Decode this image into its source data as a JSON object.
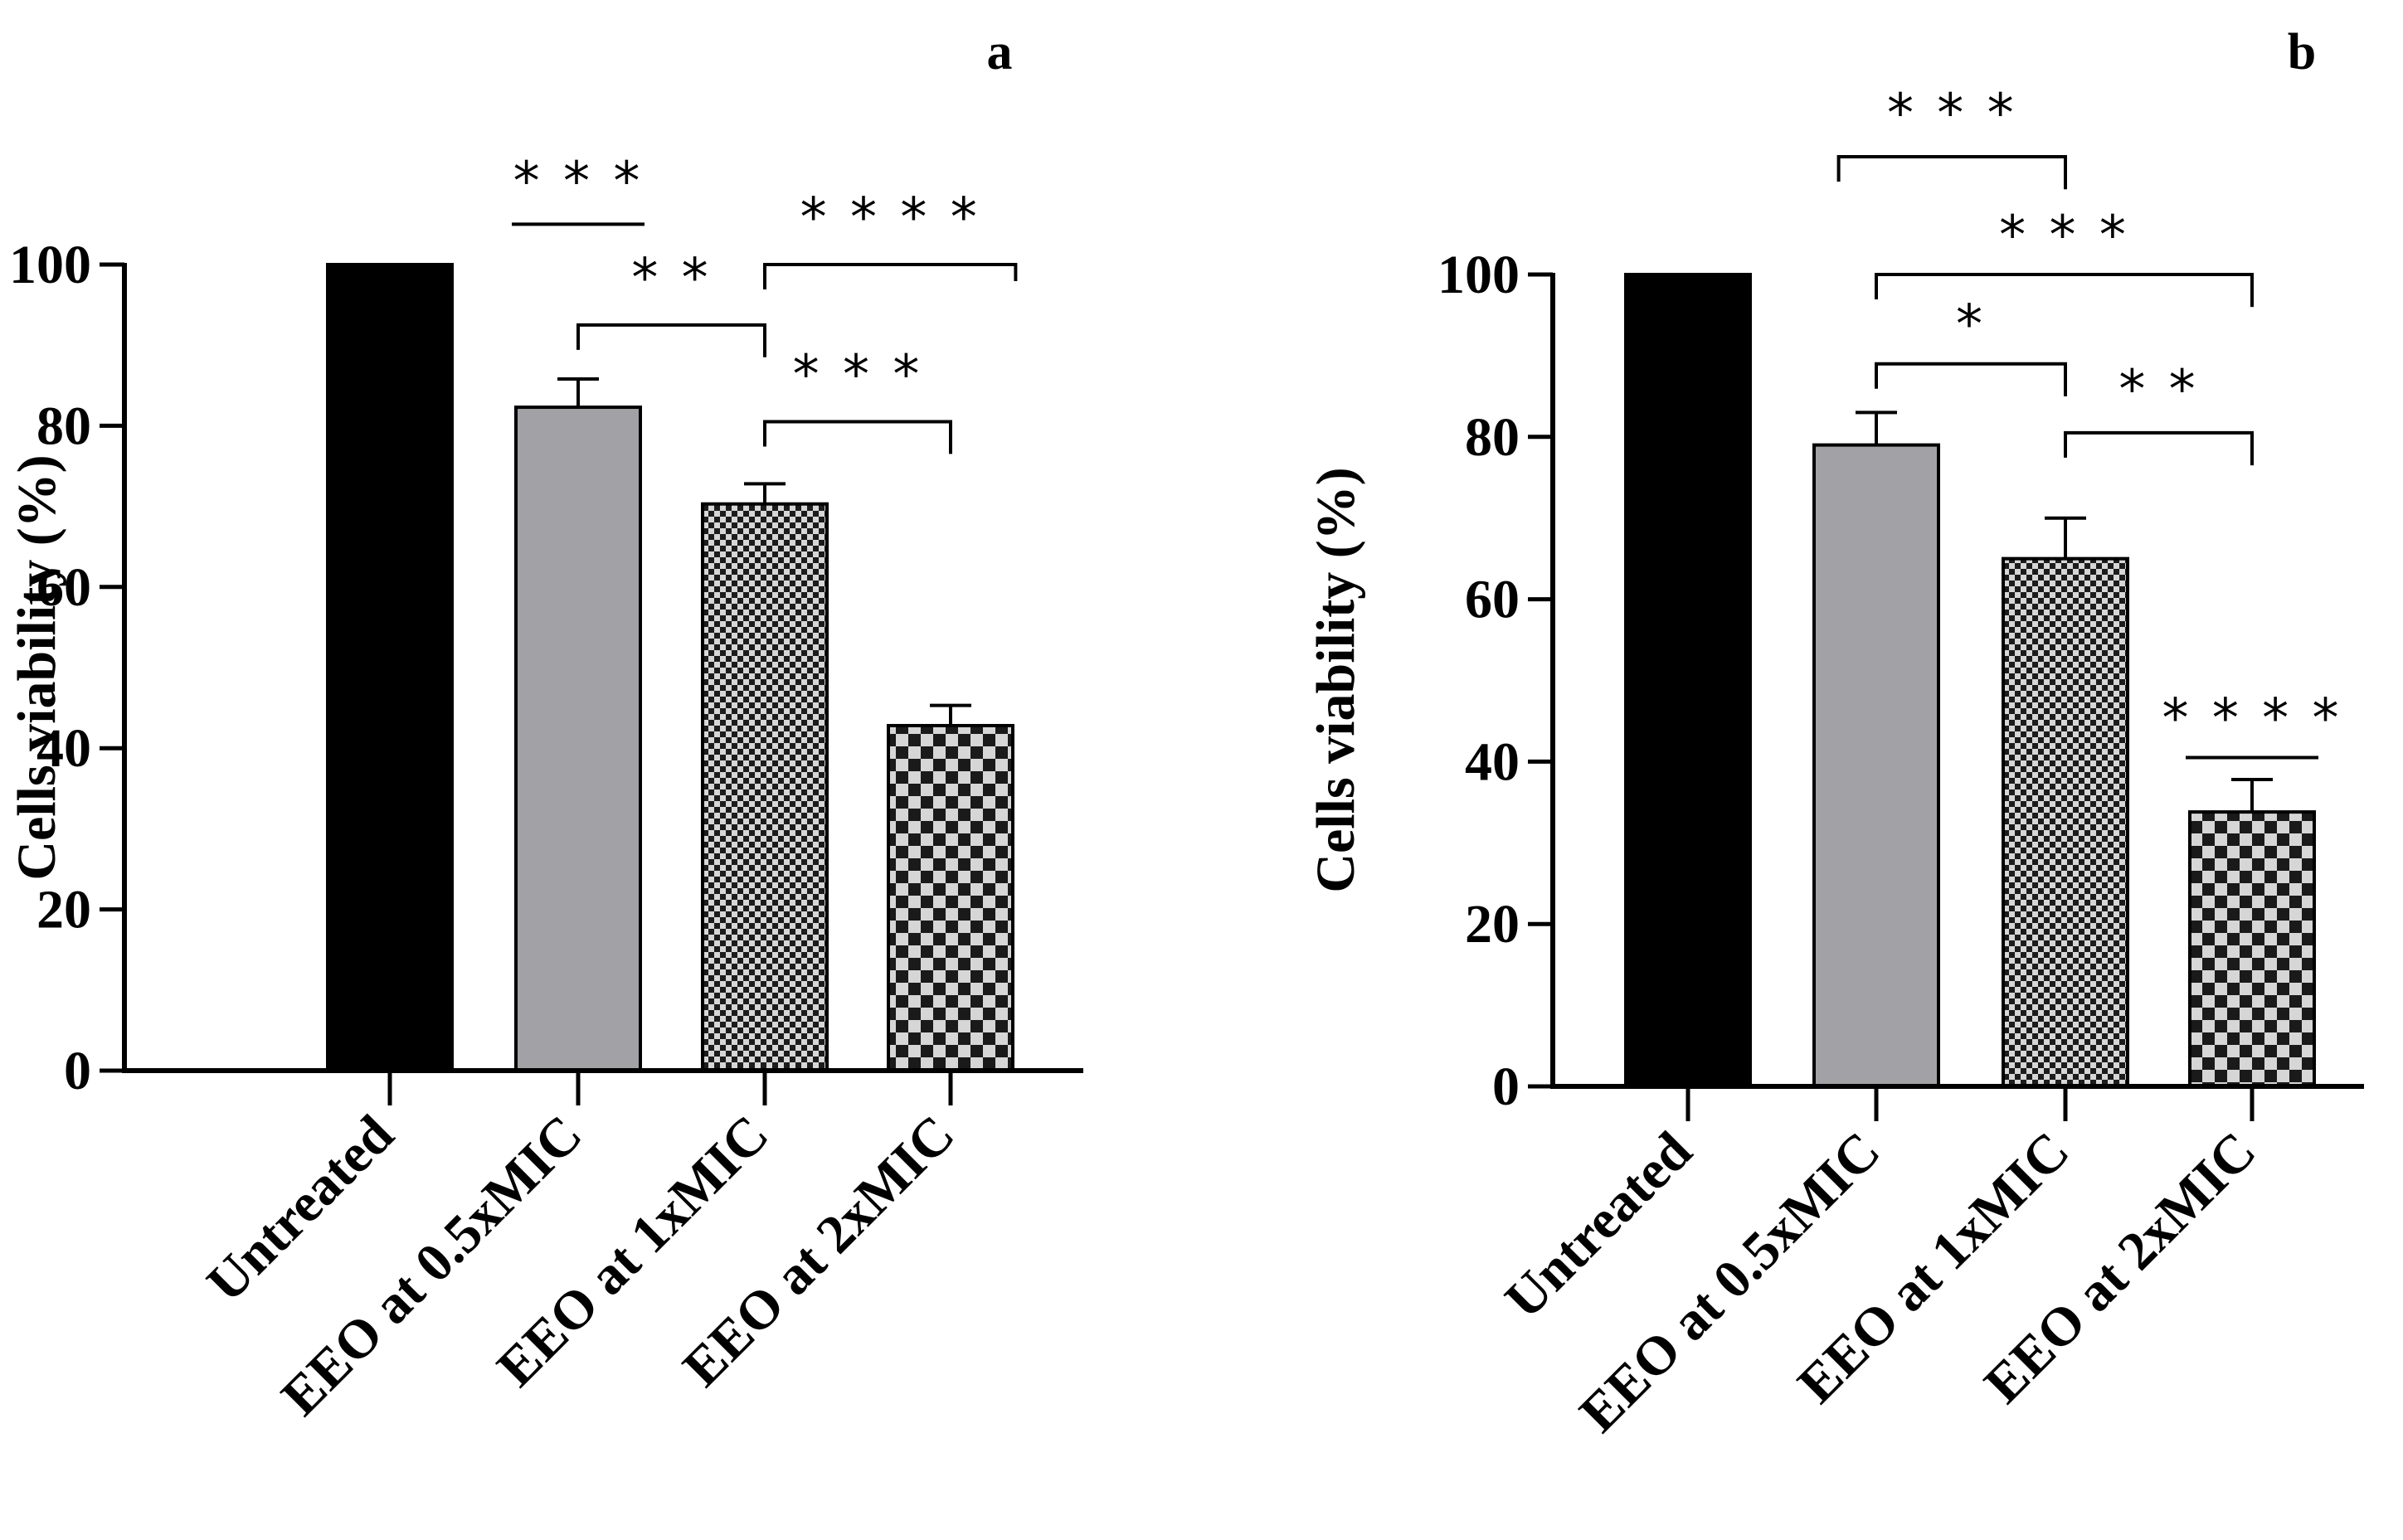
{
  "chart_data": [
    {
      "type": "bar",
      "panel_label": "a",
      "ylabel": "Cells viability (%)",
      "xlabel": "",
      "ylim": [
        0,
        100
      ],
      "yticks": [
        0,
        20,
        40,
        60,
        80,
        100
      ],
      "ytick_labels": [
        "0",
        "20",
        "40",
        "60",
        "80",
        "100"
      ],
      "categories": [
        "Untreated",
        "EEO at 0.5xMIC",
        "EEO at 1xMIC",
        "EEO at 2xMIC"
      ],
      "values": [
        100,
        82.3,
        70.3,
        42.8
      ],
      "errors": [
        0,
        3.5,
        2.5,
        2.5
      ],
      "fills": [
        "solid-black",
        "solid-gray",
        "fine-checker",
        "coarse-checker"
      ],
      "colors": {
        "black": "#000000",
        "gray": "#a2a2a6",
        "checker_light": "#d6d6d6"
      },
      "annotations": [
        {
          "text": "* * *",
          "kind": "line",
          "from": 1,
          "to": 1,
          "level": 105,
          "label_level": 112
        },
        {
          "text": "* *",
          "kind": "bracket",
          "from": 1,
          "to": 2,
          "level": 92.5,
          "label_level": 100
        },
        {
          "text": "* * * *",
          "kind": "bracket",
          "from": 2,
          "to": 3.35,
          "level": 100,
          "label_level": 107.5
        },
        {
          "text": "* * *",
          "kind": "bracket",
          "from": 2,
          "to": 3,
          "level": 80.5,
          "label_level": 88
        }
      ]
    },
    {
      "type": "bar",
      "panel_label": "b",
      "ylabel": "Cells viability (%)",
      "xlabel": "",
      "ylim": [
        0,
        100
      ],
      "yticks": [
        0,
        20,
        40,
        60,
        80,
        100
      ],
      "ytick_labels": [
        "0",
        "20",
        "40",
        "60",
        "80",
        "100"
      ],
      "categories": [
        "Untreated",
        "EEO at 0.5xMIC",
        "EEO at 1xMIC",
        "EEO at 2xMIC"
      ],
      "values": [
        100,
        79,
        65,
        33.8
      ],
      "errors": [
        0,
        4,
        5,
        4
      ],
      "fills": [
        "solid-black",
        "solid-gray",
        "fine-checker",
        "coarse-checker"
      ],
      "colors": {
        "black": "#000000",
        "gray": "#a2a2a6",
        "checker_light": "#d6d6d6"
      },
      "annotations": [
        {
          "text": "* * *",
          "kind": "bracket",
          "from": 0.8,
          "to": 2,
          "level": 114.5,
          "label_level": 121.5
        },
        {
          "text": "* * *",
          "kind": "bracket",
          "from": 1,
          "to": 3,
          "level": 100,
          "label_level": 106.5
        },
        {
          "text": "*",
          "kind": "bracket",
          "from": 1,
          "to": 2,
          "level": 89,
          "label_level": 95.5
        },
        {
          "text": "* *",
          "kind": "bracket",
          "from": 2,
          "to": 3,
          "level": 80.5,
          "label_level": 87.5
        },
        {
          "text": "* * * *",
          "kind": "line",
          "from": 3,
          "to": 3,
          "level": 40.5,
          "label_level": 47
        }
      ]
    }
  ]
}
